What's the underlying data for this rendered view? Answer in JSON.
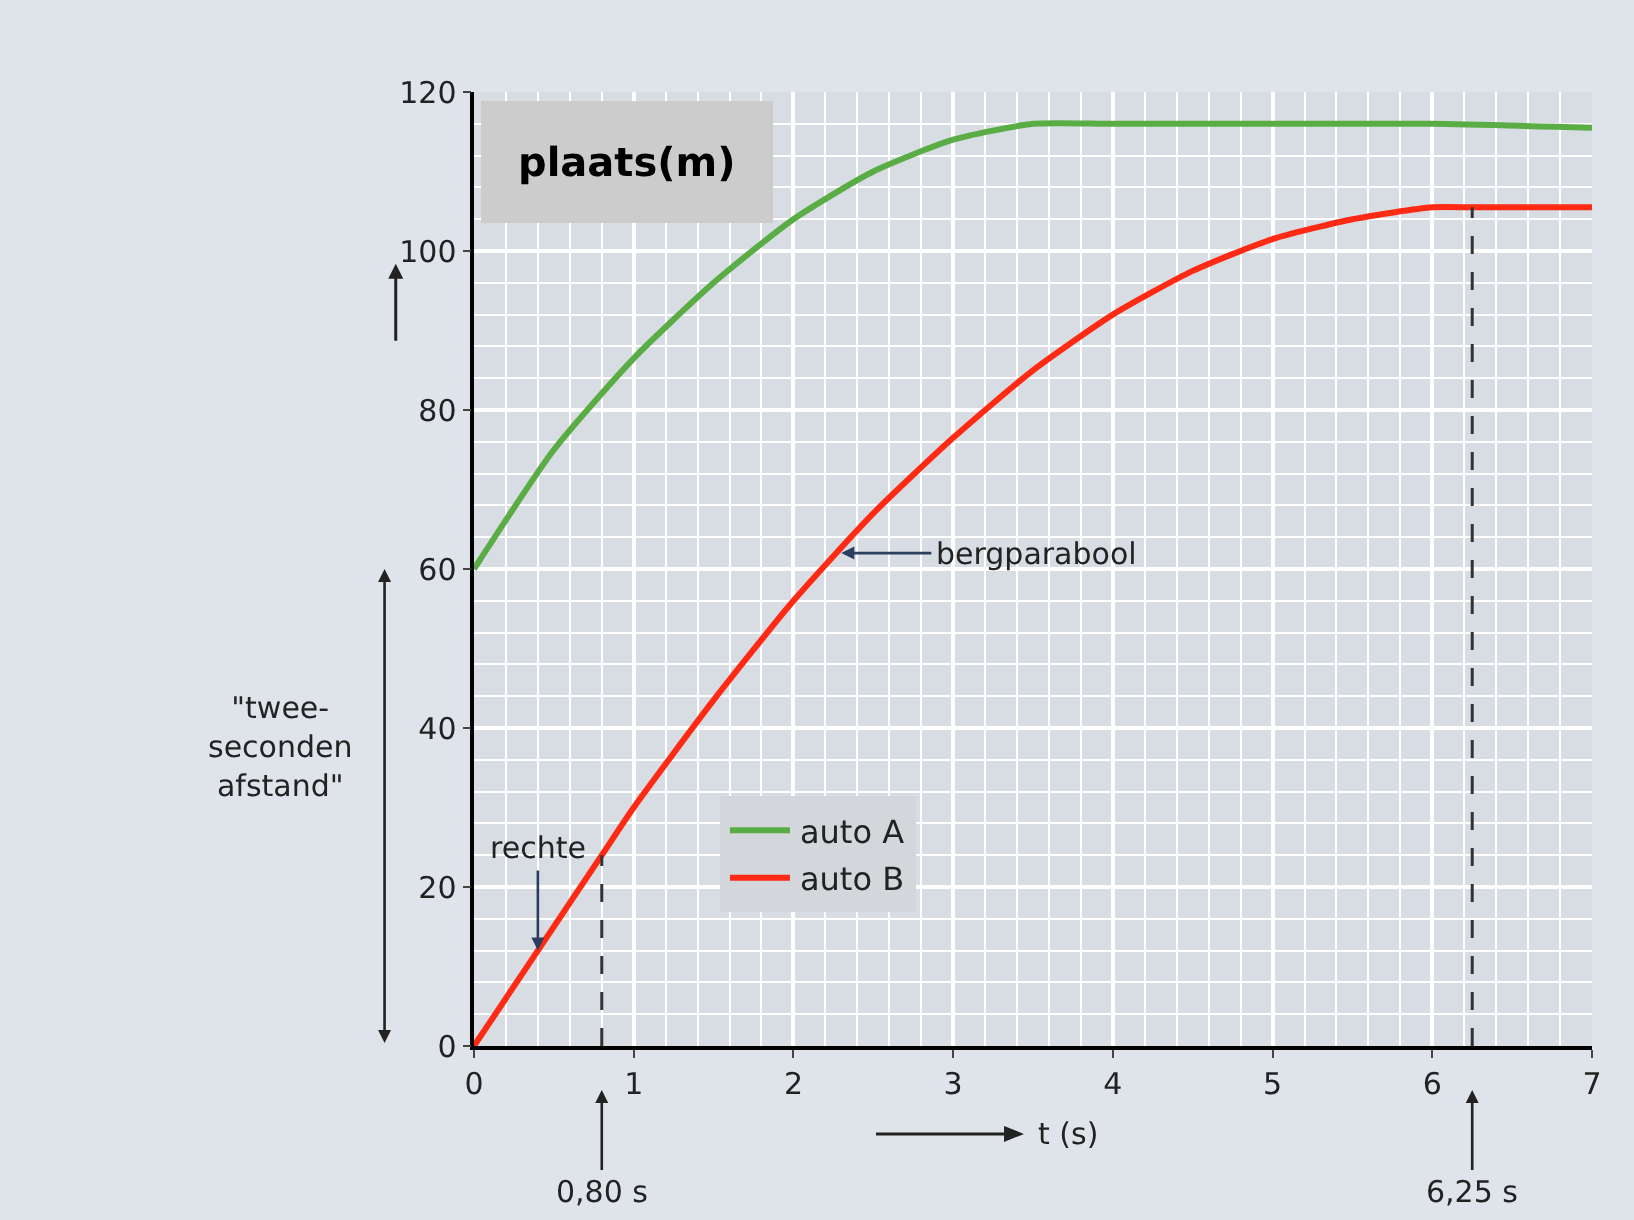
{
  "chart_data": {
    "type": "line",
    "xlabel": "t (s)",
    "ylabel": "plaats(m)",
    "xlim": [
      0,
      7
    ],
    "ylim": [
      0,
      120
    ],
    "xticks": [
      0,
      1,
      2,
      3,
      4,
      5,
      6,
      7
    ],
    "yticks": [
      0,
      20,
      40,
      60,
      80,
      100,
      120
    ],
    "grid": true,
    "legend": "bottom",
    "series": [
      {
        "name": "auto A",
        "color": "#5aad45",
        "x": [
          0,
          0.5,
          1,
          1.5,
          2,
          2.5,
          3,
          3.5,
          4,
          5,
          6,
          7
        ],
        "values": [
          60,
          75,
          86.5,
          96,
          104,
          110,
          114,
          116,
          116,
          116,
          116,
          115.5
        ]
      },
      {
        "name": "auto B",
        "color": "#ff2a14",
        "x": [
          0,
          0.8,
          1,
          1.5,
          2,
          2.5,
          3,
          3.5,
          4,
          4.5,
          5,
          5.5,
          6,
          6.25,
          7
        ],
        "values": [
          0,
          24,
          30,
          43.5,
          56,
          67,
          76.5,
          85,
          92,
          97.5,
          101.5,
          104,
          105.5,
          105.5,
          105.5
        ]
      }
    ],
    "ref_lines": [
      {
        "axis": "x",
        "value": 0.8,
        "line_style": "dashed",
        "color": "#333333"
      },
      {
        "axis": "x",
        "value": 6.25,
        "line_style": "dashed",
        "color": "#333333"
      }
    ],
    "annotations": [
      {
        "text": "bergparabool",
        "x": 2.3,
        "y": 62
      },
      {
        "text": "rechte",
        "x": 0.4,
        "y": 12
      },
      "0,80 s",
      "6,25 s",
      "\"twee-\nseconden\nafstand\""
    ]
  }
}
